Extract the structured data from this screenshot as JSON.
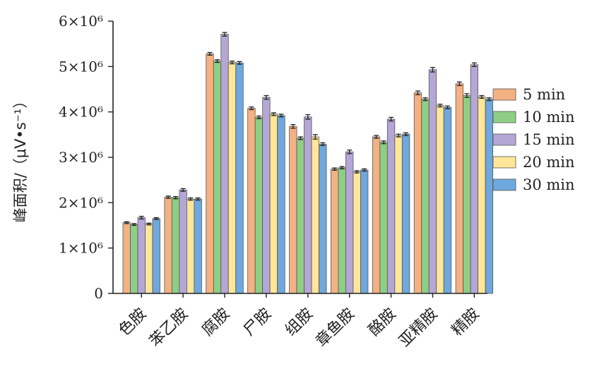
{
  "chart_data": {
    "type": "bar",
    "title": "",
    "xlabel": "",
    "ylabel": "峰面积/（μV•s⁻¹）",
    "ylim": [
      0,
      6000000
    ],
    "yticks": [
      {
        "value": 0,
        "label": "0"
      },
      {
        "value": 1000000,
        "label": "1×10⁶"
      },
      {
        "value": 2000000,
        "label": "2×10⁶"
      },
      {
        "value": 3000000,
        "label": "3×10⁶"
      },
      {
        "value": 4000000,
        "label": "4×10⁶"
      },
      {
        "value": 5000000,
        "label": "5×10⁶"
      },
      {
        "value": 6000000,
        "label": "6×10⁶"
      }
    ],
    "categories": [
      "色胺",
      "苯乙胺",
      "腐胺",
      "尸胺",
      "组胺",
      "章鱼胺",
      "酪胺",
      "亚精胺",
      "精胺"
    ],
    "series": [
      {
        "name": "5 min",
        "color": "#f4b183",
        "values": [
          1560000,
          2120000,
          5280000,
          4080000,
          3680000,
          2740000,
          3450000,
          4420000,
          4620000
        ],
        "errors": [
          20000,
          25000,
          30000,
          30000,
          40000,
          25000,
          30000,
          40000,
          40000
        ]
      },
      {
        "name": "10 min",
        "color": "#8fce85",
        "values": [
          1520000,
          2110000,
          5120000,
          3880000,
          3420000,
          2770000,
          3330000,
          4280000,
          4360000
        ],
        "errors": [
          20000,
          25000,
          30000,
          30000,
          30000,
          25000,
          30000,
          30000,
          40000
        ]
      },
      {
        "name": "15 min",
        "color": "#b4a7d6",
        "values": [
          1670000,
          2280000,
          5710000,
          4320000,
          3890000,
          3120000,
          3840000,
          4930000,
          5040000
        ],
        "errors": [
          30000,
          30000,
          40000,
          40000,
          50000,
          40000,
          40000,
          50000,
          40000
        ]
      },
      {
        "name": "20 min",
        "color": "#ffe699",
        "values": [
          1530000,
          2080000,
          5090000,
          3950000,
          3450000,
          2680000,
          3480000,
          4140000,
          4330000
        ],
        "errors": [
          20000,
          25000,
          30000,
          30000,
          50000,
          25000,
          30000,
          30000,
          30000
        ]
      },
      {
        "name": "30 min",
        "color": "#6fa8dc",
        "values": [
          1650000,
          2080000,
          5080000,
          3920000,
          3290000,
          2720000,
          3510000,
          4100000,
          4280000
        ],
        "errors": [
          20000,
          25000,
          30000,
          30000,
          30000,
          25000,
          30000,
          30000,
          30000
        ]
      }
    ],
    "legend": "right",
    "grid": false
  }
}
